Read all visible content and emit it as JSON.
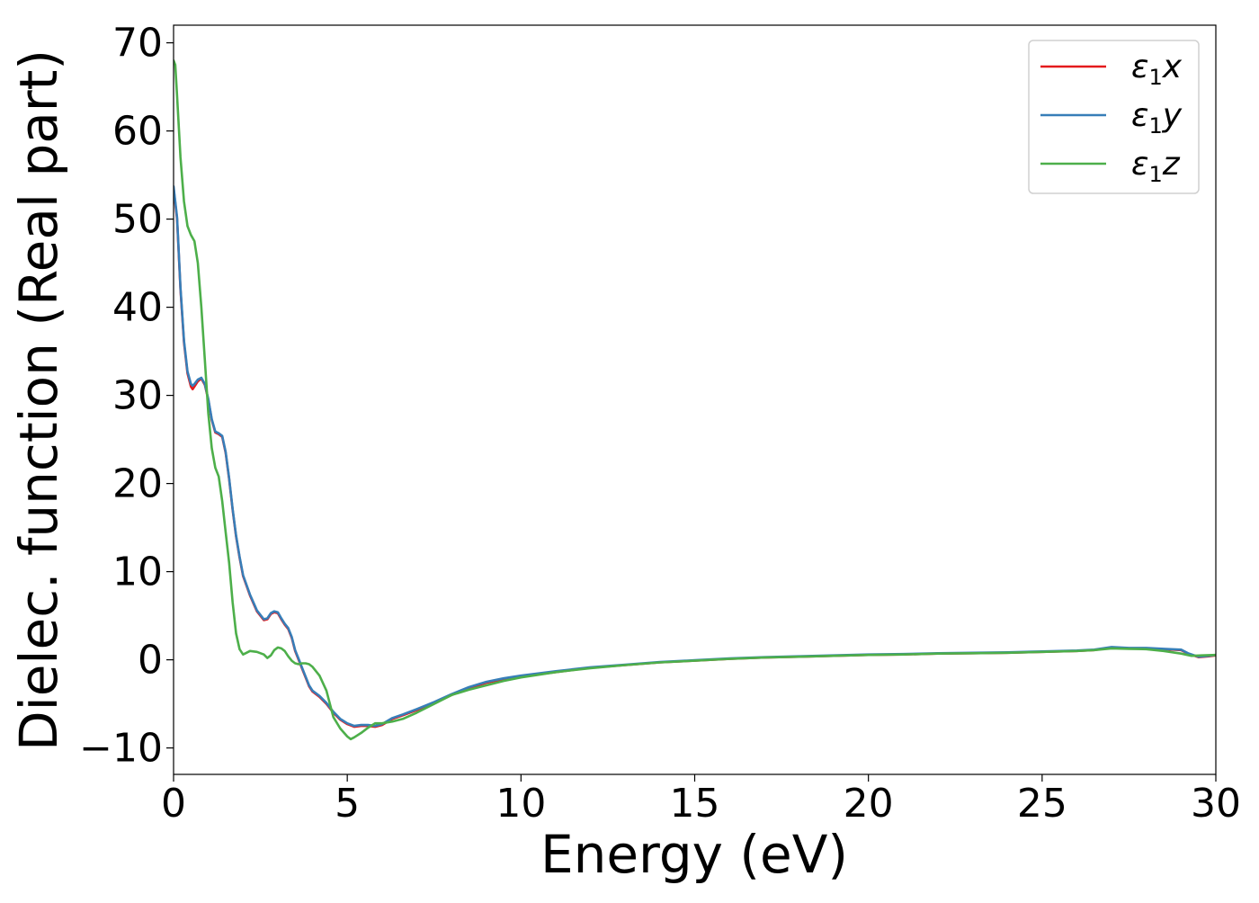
{
  "chart_data": {
    "type": "line",
    "title": "",
    "xlabel": "Energy (eV)",
    "ylabel": "Dielec. function (Real part)",
    "xlim": [
      0,
      30
    ],
    "ylim": [
      -13,
      72
    ],
    "xticks": [
      0,
      5,
      10,
      15,
      20,
      25,
      30
    ],
    "xtick_labels": [
      "0",
      "5",
      "10",
      "15",
      "20",
      "25",
      "30"
    ],
    "yticks": [
      -10,
      0,
      10,
      20,
      30,
      40,
      50,
      60,
      70
    ],
    "ytick_labels": [
      "−10",
      "0",
      "10",
      "20",
      "30",
      "40",
      "50",
      "60",
      "70"
    ],
    "grid": false,
    "legend_position": "top-right",
    "series": [
      {
        "name": "ε₁x",
        "legend_base": "ε",
        "legend_sub": "1",
        "legend_var": "x",
        "color": "#e41a1c",
        "points": [
          [
            0,
            53.5
          ],
          [
            0.1,
            50
          ],
          [
            0.2,
            42
          ],
          [
            0.3,
            36
          ],
          [
            0.4,
            32.5
          ],
          [
            0.5,
            31
          ],
          [
            0.55,
            30.7
          ],
          [
            0.6,
            31
          ],
          [
            0.7,
            31.6
          ],
          [
            0.8,
            31.9
          ],
          [
            0.9,
            31.2
          ],
          [
            1.0,
            29.5
          ],
          [
            1.1,
            27.2
          ],
          [
            1.2,
            25.8
          ],
          [
            1.3,
            25.6
          ],
          [
            1.4,
            25.3
          ],
          [
            1.5,
            23.5
          ],
          [
            1.6,
            20.5
          ],
          [
            1.7,
            17
          ],
          [
            1.8,
            14
          ],
          [
            1.9,
            11.6
          ],
          [
            2.0,
            9.5
          ],
          [
            2.2,
            7.3
          ],
          [
            2.4,
            5.5
          ],
          [
            2.6,
            4.5
          ],
          [
            2.7,
            4.6
          ],
          [
            2.8,
            5.2
          ],
          [
            2.9,
            5.4
          ],
          [
            3.0,
            5.3
          ],
          [
            3.1,
            4.6
          ],
          [
            3.2,
            4.0
          ],
          [
            3.3,
            3.5
          ],
          [
            3.4,
            2.5
          ],
          [
            3.5,
            1
          ],
          [
            3.6,
            0
          ],
          [
            3.7,
            -1
          ],
          [
            3.8,
            -2
          ],
          [
            3.9,
            -3
          ],
          [
            4.0,
            -3.6
          ],
          [
            4.2,
            -4.2
          ],
          [
            4.4,
            -5
          ],
          [
            4.6,
            -6
          ],
          [
            4.8,
            -6.8
          ],
          [
            5.0,
            -7.3
          ],
          [
            5.2,
            -7.6
          ],
          [
            5.4,
            -7.5
          ],
          [
            5.6,
            -7.5
          ],
          [
            5.8,
            -7.6
          ],
          [
            6.0,
            -7.4
          ],
          [
            6.3,
            -6.7
          ],
          [
            6.6,
            -6.3
          ],
          [
            7.0,
            -5.7
          ],
          [
            7.5,
            -4.9
          ],
          [
            8.0,
            -4
          ],
          [
            8.5,
            -3.2
          ],
          [
            9.0,
            -2.6
          ],
          [
            9.5,
            -2.2
          ],
          [
            10,
            -1.9
          ],
          [
            11,
            -1.4
          ],
          [
            12,
            -0.9
          ],
          [
            13,
            -0.6
          ],
          [
            14,
            -0.3
          ],
          [
            15,
            -0.1
          ],
          [
            16,
            0.1
          ],
          [
            17,
            0.25
          ],
          [
            18,
            0.35
          ],
          [
            19,
            0.45
          ],
          [
            20,
            0.55
          ],
          [
            21,
            0.6
          ],
          [
            22,
            0.7
          ],
          [
            23,
            0.75
          ],
          [
            24,
            0.8
          ],
          [
            25,
            0.9
          ],
          [
            26,
            1.0
          ],
          [
            26.5,
            1.1
          ],
          [
            27,
            1.4
          ],
          [
            27.5,
            1.3
          ],
          [
            28,
            1.3
          ],
          [
            28.5,
            1.2
          ],
          [
            29,
            1.1
          ],
          [
            29.2,
            0.7
          ],
          [
            29.5,
            0.3
          ],
          [
            29.8,
            0.4
          ],
          [
            30,
            0.5
          ]
        ]
      },
      {
        "name": "ε₁y",
        "legend_base": "ε",
        "legend_sub": "1",
        "legend_var": "y",
        "color": "#377eb8",
        "points": [
          [
            0,
            53.7
          ],
          [
            0.1,
            50.2
          ],
          [
            0.2,
            42.2
          ],
          [
            0.3,
            36.2
          ],
          [
            0.4,
            32.7
          ],
          [
            0.5,
            31.3
          ],
          [
            0.55,
            31.1
          ],
          [
            0.6,
            31.3
          ],
          [
            0.7,
            31.8
          ],
          [
            0.8,
            32.0
          ],
          [
            0.9,
            31.3
          ],
          [
            1.0,
            29.6
          ],
          [
            1.1,
            27.3
          ],
          [
            1.2,
            25.9
          ],
          [
            1.3,
            25.7
          ],
          [
            1.4,
            25.4
          ],
          [
            1.5,
            23.6
          ],
          [
            1.6,
            20.6
          ],
          [
            1.7,
            17.1
          ],
          [
            1.8,
            14.1
          ],
          [
            1.9,
            11.7
          ],
          [
            2.0,
            9.6
          ],
          [
            2.2,
            7.4
          ],
          [
            2.4,
            5.6
          ],
          [
            2.6,
            4.6
          ],
          [
            2.7,
            4.7
          ],
          [
            2.8,
            5.3
          ],
          [
            2.9,
            5.5
          ],
          [
            3.0,
            5.4
          ],
          [
            3.1,
            4.7
          ],
          [
            3.2,
            4.1
          ],
          [
            3.3,
            3.6
          ],
          [
            3.4,
            2.6
          ],
          [
            3.5,
            1.1
          ],
          [
            3.6,
            0.1
          ],
          [
            3.7,
            -0.9
          ],
          [
            3.8,
            -1.9
          ],
          [
            3.9,
            -2.9
          ],
          [
            4.0,
            -3.5
          ],
          [
            4.2,
            -4.1
          ],
          [
            4.4,
            -4.9
          ],
          [
            4.6,
            -5.9
          ],
          [
            4.8,
            -6.7
          ],
          [
            5.0,
            -7.2
          ],
          [
            5.2,
            -7.5
          ],
          [
            5.4,
            -7.4
          ],
          [
            5.6,
            -7.4
          ],
          [
            5.8,
            -7.5
          ],
          [
            6.0,
            -7.3
          ],
          [
            6.3,
            -6.6
          ],
          [
            6.6,
            -6.2
          ],
          [
            7.0,
            -5.6
          ],
          [
            7.5,
            -4.8
          ],
          [
            8.0,
            -3.9
          ],
          [
            8.5,
            -3.1
          ],
          [
            9.0,
            -2.5
          ],
          [
            9.5,
            -2.1
          ],
          [
            10,
            -1.8
          ],
          [
            11,
            -1.3
          ],
          [
            12,
            -0.85
          ],
          [
            13,
            -0.55
          ],
          [
            14,
            -0.25
          ],
          [
            15,
            -0.05
          ],
          [
            16,
            0.15
          ],
          [
            17,
            0.3
          ],
          [
            18,
            0.4
          ],
          [
            19,
            0.5
          ],
          [
            20,
            0.6
          ],
          [
            21,
            0.65
          ],
          [
            22,
            0.75
          ],
          [
            23,
            0.8
          ],
          [
            24,
            0.85
          ],
          [
            25,
            0.95
          ],
          [
            26,
            1.05
          ],
          [
            26.5,
            1.15
          ],
          [
            27,
            1.45
          ],
          [
            27.5,
            1.35
          ],
          [
            28,
            1.35
          ],
          [
            28.5,
            1.25
          ],
          [
            29,
            1.15
          ],
          [
            29.2,
            0.75
          ],
          [
            29.5,
            0.35
          ],
          [
            29.8,
            0.45
          ],
          [
            30,
            0.55
          ]
        ]
      },
      {
        "name": "ε₁z",
        "legend_base": "ε",
        "legend_sub": "1",
        "legend_var": "z",
        "color": "#4daf4a",
        "points": [
          [
            0,
            68
          ],
          [
            0.05,
            67.5
          ],
          [
            0.1,
            64
          ],
          [
            0.2,
            57
          ],
          [
            0.3,
            52
          ],
          [
            0.4,
            49.2
          ],
          [
            0.5,
            48.2
          ],
          [
            0.6,
            47.5
          ],
          [
            0.7,
            45
          ],
          [
            0.8,
            40
          ],
          [
            0.9,
            34
          ],
          [
            1.0,
            28
          ],
          [
            1.1,
            24
          ],
          [
            1.2,
            21.8
          ],
          [
            1.3,
            20.8
          ],
          [
            1.4,
            18
          ],
          [
            1.5,
            14.5
          ],
          [
            1.6,
            11
          ],
          [
            1.7,
            6.5
          ],
          [
            1.8,
            3
          ],
          [
            1.9,
            1.2
          ],
          [
            2.0,
            0.6
          ],
          [
            2.1,
            0.8
          ],
          [
            2.2,
            1.0
          ],
          [
            2.4,
            0.9
          ],
          [
            2.6,
            0.6
          ],
          [
            2.7,
            0.2
          ],
          [
            2.8,
            0.5
          ],
          [
            2.9,
            1.1
          ],
          [
            3.0,
            1.4
          ],
          [
            3.1,
            1.3
          ],
          [
            3.2,
            1.0
          ],
          [
            3.3,
            0.4
          ],
          [
            3.4,
            -0.1
          ],
          [
            3.5,
            -0.4
          ],
          [
            3.6,
            -0.5
          ],
          [
            3.7,
            -0.4
          ],
          [
            3.8,
            -0.4
          ],
          [
            3.9,
            -0.5
          ],
          [
            4.0,
            -0.8
          ],
          [
            4.2,
            -1.8
          ],
          [
            4.4,
            -3.5
          ],
          [
            4.6,
            -6.5
          ],
          [
            4.8,
            -7.8
          ],
          [
            5.0,
            -8.7
          ],
          [
            5.1,
            -9
          ],
          [
            5.2,
            -8.8
          ],
          [
            5.4,
            -8.3
          ],
          [
            5.6,
            -7.7
          ],
          [
            5.8,
            -7.2
          ],
          [
            6.0,
            -7.2
          ],
          [
            6.3,
            -7.0
          ],
          [
            6.6,
            -6.7
          ],
          [
            7.0,
            -6.0
          ],
          [
            7.5,
            -5.0
          ],
          [
            8.0,
            -4.0
          ],
          [
            8.5,
            -3.4
          ],
          [
            9.0,
            -2.9
          ],
          [
            9.5,
            -2.4
          ],
          [
            10,
            -2.0
          ],
          [
            11,
            -1.4
          ],
          [
            12,
            -0.95
          ],
          [
            13,
            -0.6
          ],
          [
            14,
            -0.3
          ],
          [
            15,
            -0.1
          ],
          [
            16,
            0.1
          ],
          [
            17,
            0.25
          ],
          [
            18,
            0.35
          ],
          [
            19,
            0.45
          ],
          [
            20,
            0.55
          ],
          [
            21,
            0.6
          ],
          [
            22,
            0.7
          ],
          [
            23,
            0.75
          ],
          [
            24,
            0.8
          ],
          [
            25,
            0.9
          ],
          [
            26,
            1.0
          ],
          [
            26.5,
            1.1
          ],
          [
            27,
            1.3
          ],
          [
            27.5,
            1.25
          ],
          [
            28,
            1.2
          ],
          [
            28.5,
            1.0
          ],
          [
            29,
            0.7
          ],
          [
            29.3,
            0.45
          ],
          [
            29.6,
            0.5
          ],
          [
            30,
            0.55
          ]
        ]
      }
    ]
  }
}
